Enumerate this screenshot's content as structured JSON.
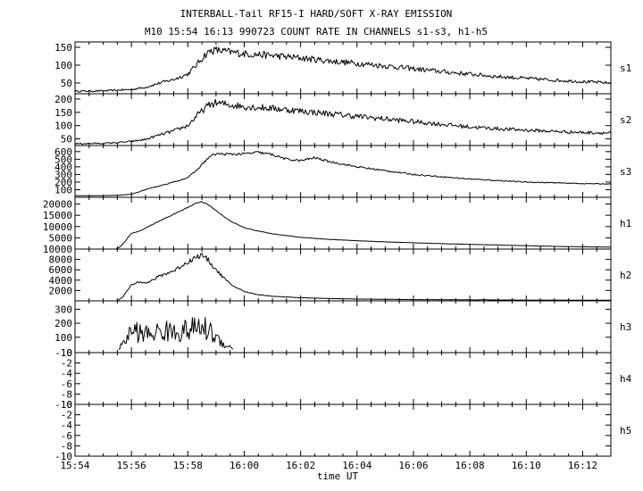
{
  "chart_data": {
    "type": "line",
    "title": "INTERBALL-Tail RF15-I HARD/SOFT X-RAY EMISSION",
    "subtitle": "M10  15:54 16:13 990723  COUNT RATE IN CHANNELS s1-s3, h1-h5",
    "xlabel": "time UT",
    "x_ticks": [
      "15:54",
      "15:56",
      "15:58",
      "16:00",
      "16:02",
      "16:04",
      "16:06",
      "16:08",
      "16:10",
      "16:12"
    ],
    "x_range_min": [
      0,
      19
    ],
    "grid": false,
    "panels": [
      {
        "name": "s1",
        "ylim": [
          20,
          165
        ],
        "yticks": [
          50,
          100,
          150
        ],
        "noise": 0.08,
        "t": [
          0,
          1,
          1.5,
          2,
          2.5,
          3,
          3.5,
          4,
          4.3,
          4.6,
          4.8,
          5,
          5.5,
          6,
          7,
          8,
          9,
          10,
          11,
          12,
          13,
          14,
          15,
          16,
          17,
          18,
          19
        ],
        "v": [
          27,
          28,
          30,
          32,
          38,
          50,
          60,
          75,
          100,
          128,
          140,
          142,
          137,
          132,
          127,
          120,
          112,
          105,
          98,
          90,
          82,
          75,
          68,
          63,
          58,
          54,
          50
        ]
      },
      {
        "name": "s2",
        "ylim": [
          25,
          220
        ],
        "yticks": [
          50,
          100,
          150,
          200
        ],
        "noise": 0.08,
        "t": [
          0,
          1,
          1.5,
          2,
          2.5,
          3,
          3.5,
          4,
          4.3,
          4.6,
          4.8,
          5,
          5.5,
          6,
          7,
          8,
          9,
          10,
          11,
          12,
          13,
          14,
          15,
          16,
          17,
          18,
          19
        ],
        "v": [
          32,
          33,
          36,
          40,
          48,
          65,
          80,
          100,
          135,
          165,
          180,
          185,
          178,
          172,
          165,
          155,
          145,
          135,
          125,
          115,
          105,
          95,
          88,
          83,
          78,
          74,
          72
        ]
      },
      {
        "name": "s3",
        "ylim": [
          0,
          680
        ],
        "yticks": [
          100,
          200,
          300,
          400,
          500,
          600
        ],
        "noise": 0.03,
        "t": [
          0,
          1,
          1.5,
          2,
          2.5,
          3,
          3.5,
          4,
          4.3,
          4.6,
          4.8,
          5,
          5.5,
          6,
          6.5,
          7,
          7.5,
          8,
          8.5,
          9,
          10,
          11,
          12,
          13,
          14,
          15,
          16,
          17,
          18,
          19
        ],
        "v": [
          20,
          22,
          25,
          40,
          100,
          150,
          200,
          260,
          350,
          470,
          540,
          570,
          565,
          570,
          590,
          560,
          500,
          480,
          520,
          470,
          400,
          350,
          300,
          270,
          240,
          220,
          200,
          190,
          180,
          175
        ]
      },
      {
        "name": "h1",
        "ylim": [
          0,
          23000
        ],
        "yticks": [
          5000,
          10000,
          15000,
          20000
        ],
        "noise": 0.01,
        "t": [
          1.45,
          1.6,
          1.75,
          1.9,
          2.0,
          2.3,
          2.6,
          3.0,
          3.5,
          4.0,
          4.3,
          4.5,
          4.7,
          5.0,
          5.5,
          6.0,
          6.5,
          7.0,
          8.0,
          9.0,
          10.0,
          11.0,
          12.0,
          13.0,
          14.0,
          15.0,
          16.0,
          17.0,
          18.0,
          19.0
        ],
        "v": [
          0,
          1000,
          3000,
          5500,
          7000,
          8000,
          10000,
          12500,
          15500,
          18500,
          20500,
          21000,
          20000,
          17000,
          12500,
          9500,
          8000,
          6800,
          5200,
          4300,
          3700,
          3200,
          2800,
          2400,
          2100,
          1800,
          1500,
          1200,
          1000,
          900
        ]
      },
      {
        "name": "h2",
        "ylim": [
          0,
          10000
        ],
        "yticks": [
          2000,
          4000,
          6000,
          8000,
          10000
        ],
        "noise": 0.06,
        "t": [
          1.5,
          1.7,
          1.85,
          2.0,
          2.3,
          2.6,
          3.0,
          3.5,
          4.0,
          4.3,
          4.5,
          4.7,
          5.0,
          5.5,
          6.0,
          6.5,
          7.0,
          8.0,
          9.0,
          10.0,
          12.0,
          14.0,
          16.0,
          19.0
        ],
        "v": [
          0,
          800,
          2000,
          3000,
          3800,
          3500,
          4800,
          5800,
          7500,
          8500,
          8800,
          8000,
          6000,
          3200,
          1800,
          1200,
          900,
          600,
          450,
          350,
          250,
          200,
          150,
          120
        ]
      },
      {
        "name": "h3",
        "ylim": [
          -10,
          360
        ],
        "yticks": [
          -10,
          100,
          200,
          300
        ],
        "noise": 0.55,
        "t": [
          1.55,
          1.75,
          2.0,
          2.5,
          3.0,
          3.5,
          4.0,
          4.5,
          4.8,
          5.2,
          5.6
        ],
        "v": [
          20,
          60,
          150,
          120,
          140,
          140,
          150,
          170,
          140,
          60,
          20
        ]
      },
      {
        "name": "h4",
        "ylim": [
          -10,
          0
        ],
        "yticks": [
          -10,
          -8,
          -6,
          -4,
          -2,
          0
        ],
        "noise": 0,
        "t": [],
        "v": []
      },
      {
        "name": "h5",
        "ylim": [
          -10,
          0
        ],
        "yticks": [
          -10,
          -8,
          -6,
          -4,
          -2,
          0
        ],
        "noise": 0,
        "t": [],
        "v": []
      }
    ]
  }
}
